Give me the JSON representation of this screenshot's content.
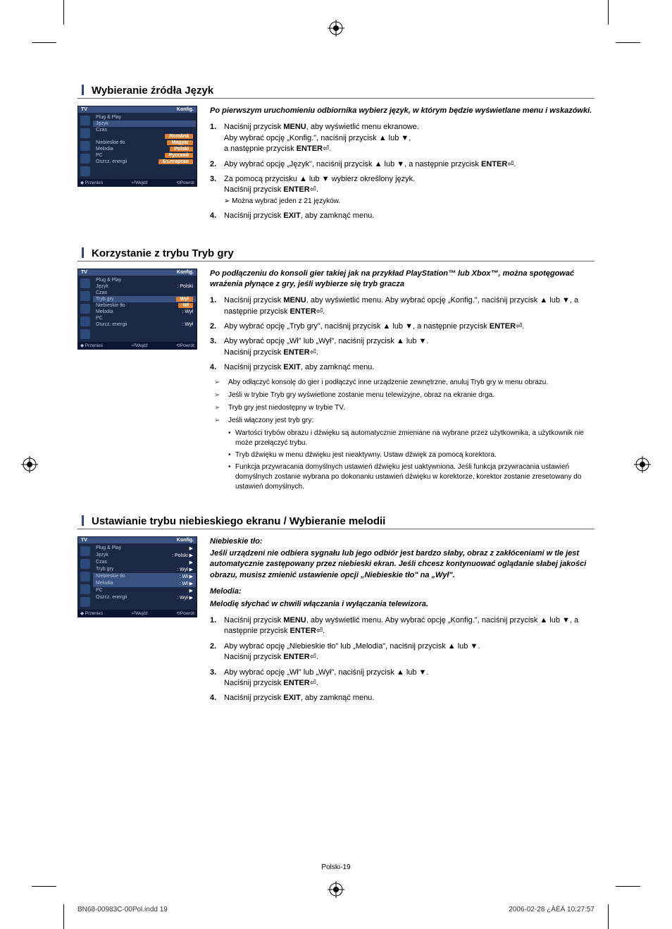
{
  "sections": [
    {
      "title": "Wybieranie źródła Język",
      "menu": {
        "tv_label": "TV",
        "tab_label": "Konfig.",
        "rows": [
          {
            "label": "Plug & Play",
            "value": ""
          },
          {
            "label": "Język",
            "value": "",
            "sel": true
          },
          {
            "label": "Czas",
            "value": ""
          },
          {
            "label": "",
            "value": "Română",
            "hl": true
          },
          {
            "label": "Niebieskie tło",
            "value": "Magyar",
            "hl": true
          },
          {
            "label": "Melodia",
            "value": "Polski",
            "hl": true
          },
          {
            "label": "PC",
            "value": "Русский",
            "hl": true
          },
          {
            "label": "Oszcz. energii",
            "value": "Български",
            "hl": true
          }
        ],
        "foot": [
          "◆ Przenieś",
          "⏎Wejdź",
          "⟲Powrót"
        ]
      },
      "intro": "Po pierwszym uruchomieniu odbiornika wybierz język, w którym będzie wyświetlane menu i wskazówki.",
      "steps": [
        "Naciśnij przycisk <b>MENU</b>, aby wyświetlić menu ekranowe.<br>Aby wybrać opcję „Konfig.\", naciśnij przycisk ▲ lub ▼,<br>a następnie przycisk <b>ENTER</b>⏎.",
        "Aby wybrać opcję „Język\", naciśnij przycisk ▲ lub ▼, a następnie przycisk <b>ENTER</b>⏎.",
        "Za pomocą przycisku ▲ lub ▼ wybierz określony język.<br>Naciśnij przycisk <b>ENTER</b>⏎.<br><span style='font-size:10px'>➢ Można wybrać jeden z 21 języków.</span>",
        "Naciśnij przycisk <b>EXIT</b>, aby zamknąć menu."
      ]
    },
    {
      "title": "Korzystanie z trybu Tryb gry",
      "menu": {
        "tv_label": "TV",
        "tab_label": "Konfig.",
        "rows": [
          {
            "label": "Plug & Play",
            "value": ""
          },
          {
            "label": "Język",
            "value": ": Polski"
          },
          {
            "label": "Czas",
            "value": ""
          },
          {
            "label": "Tryb gry",
            "value": "Wył",
            "sel": true,
            "hl": true
          },
          {
            "label": "Niebieskie tło",
            "value": "Wł",
            "hl": true
          },
          {
            "label": "Melodia",
            "value": ": Wył"
          },
          {
            "label": "PC",
            "value": ""
          },
          {
            "label": "Oszcz. energii",
            "value": ": Wył"
          }
        ],
        "foot": [
          "◆ Przenieś",
          "⏎Wejdź",
          "⟲Powrót"
        ]
      },
      "intro": "Po podłączeniu do konsoli gier takiej jak na przykład PlayStation™ lub Xbox™, można spotęgować wrażenia płynące z gry, jeśli wybierze się tryb gracza",
      "steps": [
        "Naciśnij przycisk <b>MENU</b>, aby wyświetlić menu. Aby wybrać opcję „Konfig.\", naciśnij przycisk ▲ lub ▼, a następnie przycisk <b>ENTER</b>⏎.",
        "Aby wybrać opcję „Tryb gry\", naciśnij przycisk ▲ lub ▼, a następnie przycisk <b>ENTER</b>⏎.",
        "Aby wybrać opcję „Wł\" lub „Wył\", naciśnij przycisk ▲ lub ▼.<br>Naciśnij przycisk <b>ENTER</b>⏎.",
        "Naciśnij przycisk <b>EXIT</b>, aby zamknąć menu."
      ],
      "arrows": [
        "Aby odłączyć konsolę do gier i podłączyć inne urządzenie zewnętrzne, anuluj Tryb gry w menu obrazu.",
        "Jeśli w trybie Tryb gry wyświetlone zostanie menu telewizyjne, obraz na ekranie drga.",
        "Tryb gry jest niedostępny w trybie TV.",
        "Jeśli włączony jest tryb gry:"
      ],
      "bullets": [
        "Wartości trybów obrazu i dźwięku są automatycznie zmieniane na wybrane przez użytkownika, a użytkownik nie może przełączyć trybu.",
        "Tryb dźwięku w menu dźwięku jest nieaktywny. Ustaw dźwięk za pomocą korektora.",
        "Funkcja przywracania domyślnych ustawień dźwięku jest uaktywniona. Jeśli funkcja przywracania ustawień domyślnych zostanie wybrana po dokonaniu ustawień dźwięku w korektorze, korektor zostanie zresetowany do ustawień domyślnych."
      ]
    },
    {
      "title": "Ustawianie trybu niebieskiego ekranu / Wybieranie melodii",
      "menu": {
        "tv_label": "TV",
        "tab_label": "Konfig.",
        "rows": [
          {
            "label": "Plug & Play",
            "value": "▶"
          },
          {
            "label": "Język",
            "value": ": Polski ▶"
          },
          {
            "label": "Czas",
            "value": "▶"
          },
          {
            "label": "Tryb gry",
            "value": ": Wył ▶"
          },
          {
            "label": "Niebieskie tło",
            "value": ": Wł ▶",
            "sel": true
          },
          {
            "label": "Melodia",
            "value": ": Wł ▶",
            "sel": true
          },
          {
            "label": "PC",
            "value": "▶"
          },
          {
            "label": "Oszcz. energii",
            "value": ": Wył ▶"
          }
        ],
        "foot": [
          "◆ Przenieś",
          "⏎Wejdź",
          "⟲Powrót"
        ]
      },
      "intro_parts": [
        {
          "h": "Niebieskie tło:",
          "t": "Jeśli urządzeni nie odbiera sygnału lub jego odbiór jest bardzo słaby, obraz z zakłóceniami w tle jest automatycznie zastępowany przez niebieski ekran. Jeśli chcesz kontynuować oglądanie słabej jakości obrazu, musisz zmienić ustawienie opcji „Niebieskie tło\" na „Wył\"."
        },
        {
          "h": "Melodia:",
          "t": "Melodię słychać w chwili włączania i wyłączania telewizora."
        }
      ],
      "steps": [
        "Naciśnij przycisk <b>MENU</b>, aby wyświetlić menu. Aby wybrać opcję „Konfig.\", naciśnij przycisk ▲ lub ▼, a następnie przycisk <b>ENTER</b>⏎.",
        "Aby wybrać opcję „Niebieskie tło\" lub „Melodia\", naciśnij przycisk ▲ lub ▼.<br>Naciśnij przycisk <b>ENTER</b>⏎.",
        "Aby wybrać opcję „Wł\" lub „Wył\", naciśnij przycisk ▲ lub ▼.<br>Naciśnij przycisk <b>ENTER</b>⏎.",
        "Naciśnij przycisk <b>EXIT</b>, aby zamknąć menu."
      ]
    }
  ],
  "page_number": "Polski-19",
  "doc_footer_left": "BN68-00983C-00Pol.indd   19",
  "doc_footer_right": "2006-02-28   ¿ÀÈÄ 10:27:57",
  "colors": {
    "accent_bar": "#2c4a7a",
    "menu_bg": "#1a2845",
    "menu_header": "#3a5280",
    "menu_highlight": "#e08030",
    "menu_text": "#b8c5e0"
  }
}
